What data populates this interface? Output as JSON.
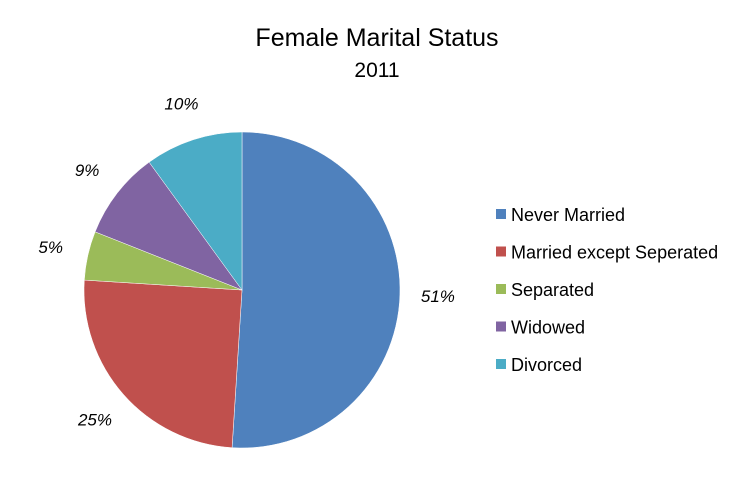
{
  "chart_data": {
    "type": "pie",
    "title": "Female Marital Status",
    "subtitle": "2011",
    "start_angle_deg": 0,
    "direction": "clockwise",
    "legend_position": "right",
    "slices": [
      {
        "name": "Never Married",
        "value": 51,
        "label": "51%",
        "color": "#4F81BD"
      },
      {
        "name": "Married except Seperated",
        "value": 25,
        "label": "25%",
        "color": "#C0504D"
      },
      {
        "name": "Separated",
        "value": 5,
        "label": "5%",
        "color": "#9BBB59"
      },
      {
        "name": "Widowed",
        "value": 9,
        "label": "9%",
        "color": "#8064A2"
      },
      {
        "name": "Divorced",
        "value": 10,
        "label": "10%",
        "color": "#4BACC6"
      }
    ]
  }
}
